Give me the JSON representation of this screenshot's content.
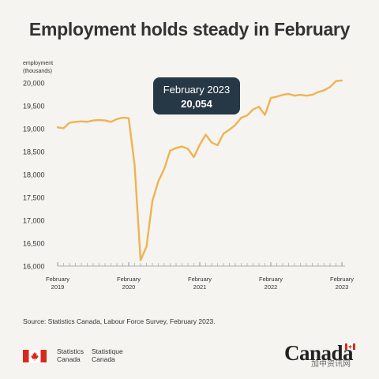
{
  "title": "Employment holds steady in February",
  "chart_data": {
    "type": "line",
    "title": "Employment holds steady in February",
    "ylabel": "employment\n(thousands)",
    "ylim": [
      16000,
      20000
    ],
    "yticks": [
      "16,000",
      "16,500",
      "17,000",
      "17,500",
      "18,000",
      "18,500",
      "19,000",
      "19,500",
      "20,000"
    ],
    "xticks": [
      {
        "label": [
          "February",
          "2019"
        ]
      },
      {
        "label": [
          "February",
          "2020"
        ]
      },
      {
        "label": [
          "February",
          "2021"
        ]
      },
      {
        "label": [
          "February",
          "2022"
        ]
      },
      {
        "label": [
          "February",
          "2023"
        ]
      }
    ],
    "grid": false,
    "line_color": "#f0b254",
    "x": [
      "2019-02",
      "2019-03",
      "2019-04",
      "2019-05",
      "2019-06",
      "2019-07",
      "2019-08",
      "2019-09",
      "2019-10",
      "2019-11",
      "2019-12",
      "2020-01",
      "2020-02",
      "2020-03",
      "2020-04",
      "2020-05",
      "2020-06",
      "2020-07",
      "2020-08",
      "2020-09",
      "2020-10",
      "2020-11",
      "2020-12",
      "2021-01",
      "2021-02",
      "2021-03",
      "2021-04",
      "2021-05",
      "2021-06",
      "2021-07",
      "2021-08",
      "2021-09",
      "2021-10",
      "2021-11",
      "2021-12",
      "2022-01",
      "2022-02",
      "2022-03",
      "2022-04",
      "2022-05",
      "2022-06",
      "2022-07",
      "2022-08",
      "2022-09",
      "2022-10",
      "2022-11",
      "2022-12",
      "2023-01",
      "2023-02"
    ],
    "values": [
      19030,
      19010,
      19130,
      19150,
      19160,
      19150,
      19180,
      19190,
      19180,
      19150,
      19210,
      19240,
      19230,
      18200,
      16130,
      16420,
      17420,
      17850,
      18120,
      18520,
      18580,
      18610,
      18560,
      18380,
      18650,
      18870,
      18700,
      18640,
      18890,
      18980,
      19080,
      19240,
      19290,
      19420,
      19480,
      19300,
      19670,
      19700,
      19740,
      19760,
      19720,
      19740,
      19720,
      19740,
      19800,
      19840,
      19910,
      20040,
      20054
    ],
    "callout": {
      "label": "February 2023",
      "value": "20,054"
    }
  },
  "source": "Source: Statistics Canada, Labour Force Survey, February 2023.",
  "footer": {
    "agency_en": [
      "Statistics",
      "Canada"
    ],
    "agency_fr": [
      "Statistique",
      "Canada"
    ],
    "wordmark": "Canada",
    "watermark": "加中资讯网"
  }
}
